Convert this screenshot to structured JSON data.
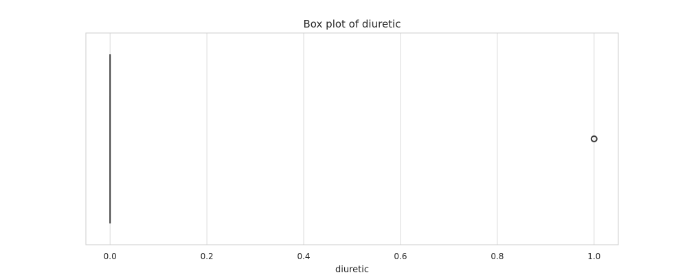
{
  "chart_data": {
    "type": "box",
    "title": "Box plot of diuretic",
    "xlabel": "diuretic",
    "ylabel": "",
    "xlim": [
      -0.05,
      1.05
    ],
    "xticks": [
      0.0,
      0.2,
      0.4,
      0.6,
      0.8,
      1.0
    ],
    "xtick_labels": [
      "0.0",
      "0.2",
      "0.4",
      "0.6",
      "0.8",
      "1.0"
    ],
    "grid": true,
    "orientation": "horizontal",
    "box": {
      "min": 0.0,
      "q1": 0.0,
      "median": 0.0,
      "q3": 0.0,
      "max": 0.0
    },
    "outliers": [
      1.0
    ],
    "colors": {
      "box": "#3a3a3a",
      "grid": "#d9d9d9",
      "frame": "#cccccc",
      "text": "#262626"
    }
  }
}
